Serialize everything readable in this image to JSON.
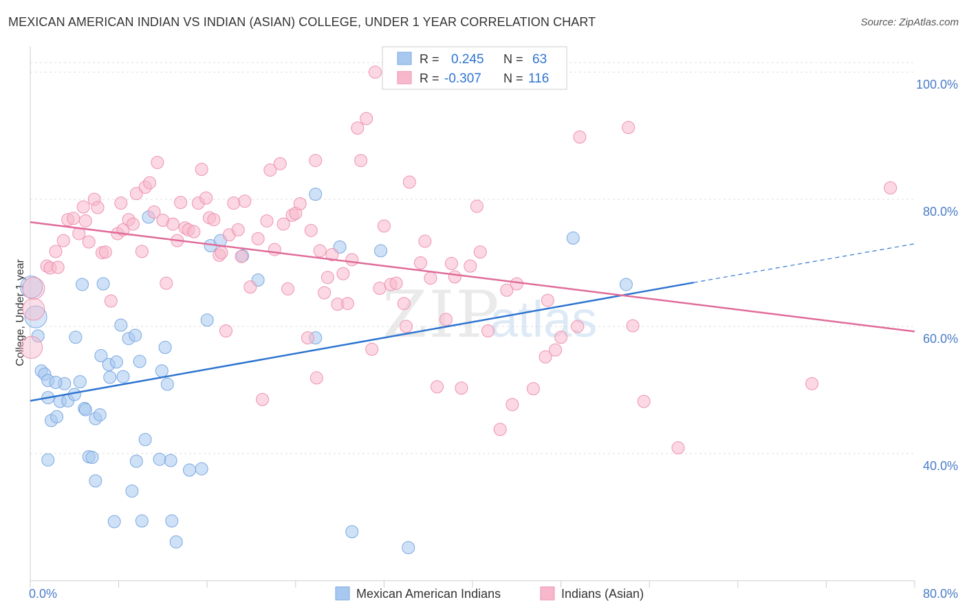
{
  "header": {
    "title": "MEXICAN AMERICAN INDIAN VS INDIAN (ASIAN) COLLEGE, UNDER 1 YEAR CORRELATION CHART",
    "source": "Source: ZipAtlas.com"
  },
  "watermark": {
    "zip": "ZIP",
    "atlas": "atlas"
  },
  "legend_box": {
    "rows": [
      {
        "r_label": "R =",
        "r_value": "0.245",
        "n_label": "N =",
        "n_value": "63"
      },
      {
        "r_label": "R =",
        "r_value": "-0.307",
        "n_label": "N =",
        "n_value": "116"
      }
    ]
  },
  "colors": {
    "blue_fill": "#a8c8f0",
    "blue_stroke": "#7aa8e0",
    "blue_line": "#2d74d0",
    "pink_fill": "#f7b8cc",
    "pink_stroke": "#ee93b0",
    "pink_line": "#e06b98",
    "axis_text": "#4a7cc7",
    "grid": "#dddddd"
  },
  "chart_data": {
    "type": "scatter",
    "title": "MEXICAN AMERICAN INDIAN VS INDIAN (ASIAN) COLLEGE, UNDER 1 YEAR CORRELATION CHART",
    "xlabel": "",
    "ylabel": "College, Under 1 year",
    "xlim": [
      0,
      80
    ],
    "ylim": [
      20,
      104
    ],
    "x_tick_labels": [
      {
        "value": 0,
        "label": "0.0%"
      },
      {
        "value": 80,
        "label": "80.0%"
      }
    ],
    "y_tick_labels": [
      {
        "value": 40,
        "label": "40.0%"
      },
      {
        "value": 60,
        "label": "60.0%"
      },
      {
        "value": 80,
        "label": "80.0%"
      },
      {
        "value": 100,
        "label": "100.0%"
      }
    ],
    "grid": true,
    "legend_position": "bottom-center",
    "series": [
      {
        "name": "Mexican American Indians",
        "r": 0.245,
        "n": 63,
        "trend": {
          "x0": 0,
          "y0": 48.3,
          "x1": 60,
          "y1": 66.9,
          "dash_x1": 80,
          "dash_y1": 73.0
        },
        "points": [
          [
            0.1,
            66.2
          ],
          [
            0.5,
            61.5
          ],
          [
            0.7,
            58.5
          ],
          [
            1.0,
            53.0
          ],
          [
            1.3,
            52.5
          ],
          [
            1.6,
            48.8
          ],
          [
            1.9,
            45.2
          ],
          [
            2.4,
            45.8
          ],
          [
            2.7,
            48.2
          ],
          [
            3.1,
            51.0
          ],
          [
            1.6,
            51.5
          ],
          [
            3.4,
            48.3
          ],
          [
            2.3,
            51.2
          ],
          [
            4.1,
            58.3
          ],
          [
            4.0,
            49.3
          ],
          [
            4.5,
            51.3
          ],
          [
            4.9,
            47.1
          ],
          [
            5.0,
            46.9
          ],
          [
            5.9,
            45.5
          ],
          [
            6.3,
            46.1
          ],
          [
            6.4,
            55.4
          ],
          [
            6.6,
            66.7
          ],
          [
            7.1,
            54.0
          ],
          [
            7.2,
            52.0
          ],
          [
            7.8,
            54.4
          ],
          [
            8.2,
            60.2
          ],
          [
            8.4,
            52.1
          ],
          [
            8.9,
            58.1
          ],
          [
            9.5,
            58.6
          ],
          [
            9.9,
            54.5
          ],
          [
            10.4,
            42.2
          ],
          [
            10.7,
            77.2
          ],
          [
            11.7,
            39.1
          ],
          [
            11.9,
            53.0
          ],
          [
            12.2,
            56.7
          ],
          [
            12.4,
            50.9
          ],
          [
            12.7,
            38.9
          ],
          [
            14.4,
            37.4
          ],
          [
            15.5,
            37.6
          ],
          [
            16.0,
            61.0
          ],
          [
            16.3,
            72.7
          ],
          [
            17.2,
            73.5
          ],
          [
            19.2,
            71.1
          ],
          [
            20.6,
            67.3
          ],
          [
            1.6,
            39.0
          ],
          [
            5.3,
            39.5
          ],
          [
            5.6,
            39.4
          ],
          [
            5.9,
            35.7
          ],
          [
            7.6,
            29.3
          ],
          [
            9.2,
            34.1
          ],
          [
            9.6,
            38.8
          ],
          [
            10.1,
            29.4
          ],
          [
            12.8,
            29.4
          ],
          [
            13.2,
            26.1
          ],
          [
            25.8,
            80.8
          ],
          [
            25.8,
            58.2
          ],
          [
            28.0,
            72.5
          ],
          [
            29.1,
            27.7
          ],
          [
            31.7,
            71.9
          ],
          [
            34.2,
            25.2
          ],
          [
            49.1,
            73.9
          ],
          [
            53.9,
            66.6
          ],
          [
            4.7,
            66.6
          ]
        ]
      },
      {
        "name": "Indians (Asian)",
        "r": -0.307,
        "n": 116,
        "trend": {
          "x0": 0,
          "y0": 76.4,
          "x1": 80,
          "y1": 59.2
        },
        "points": [
          [
            0.1,
            56.7
          ],
          [
            0.3,
            62.7
          ],
          [
            0.3,
            66.0
          ],
          [
            1.5,
            69.5
          ],
          [
            1.8,
            69.2
          ],
          [
            2.3,
            71.8
          ],
          [
            2.5,
            69.3
          ],
          [
            3.0,
            73.5
          ],
          [
            3.4,
            76.8
          ],
          [
            3.9,
            77.0
          ],
          [
            4.4,
            74.6
          ],
          [
            4.8,
            78.8
          ],
          [
            5.0,
            76.6
          ],
          [
            5.3,
            73.3
          ],
          [
            5.8,
            80.0
          ],
          [
            6.1,
            78.7
          ],
          [
            6.5,
            71.6
          ],
          [
            6.8,
            71.7
          ],
          [
            7.3,
            64.0
          ],
          [
            7.9,
            74.6
          ],
          [
            8.2,
            79.4
          ],
          [
            8.4,
            75.2
          ],
          [
            8.9,
            76.8
          ],
          [
            9.3,
            76.1
          ],
          [
            9.6,
            80.9
          ],
          [
            10.1,
            71.8
          ],
          [
            10.4,
            81.9
          ],
          [
            10.8,
            82.6
          ],
          [
            11.2,
            78.0
          ],
          [
            11.5,
            85.8
          ],
          [
            12.0,
            76.7
          ],
          [
            12.3,
            66.8
          ],
          [
            12.9,
            76.1
          ],
          [
            13.3,
            73.5
          ],
          [
            13.6,
            79.5
          ],
          [
            14.0,
            75.5
          ],
          [
            14.3,
            75.2
          ],
          [
            14.8,
            74.9
          ],
          [
            15.2,
            79.4
          ],
          [
            15.5,
            84.7
          ],
          [
            15.9,
            80.2
          ],
          [
            16.2,
            77.1
          ],
          [
            16.6,
            76.8
          ],
          [
            17.1,
            71.2
          ],
          [
            17.3,
            71.6
          ],
          [
            17.7,
            59.3
          ],
          [
            18.0,
            74.4
          ],
          [
            18.4,
            79.4
          ],
          [
            18.8,
            75.2
          ],
          [
            19.1,
            71.0
          ],
          [
            19.4,
            79.7
          ],
          [
            19.9,
            66.2
          ],
          [
            20.6,
            73.8
          ],
          [
            21.0,
            48.5
          ],
          [
            21.4,
            76.6
          ],
          [
            21.7,
            84.6
          ],
          [
            22.1,
            72.1
          ],
          [
            22.6,
            85.6
          ],
          [
            22.9,
            76.1
          ],
          [
            23.3,
            65.9
          ],
          [
            23.7,
            77.5
          ],
          [
            24.0,
            77.8
          ],
          [
            24.4,
            79.3
          ],
          [
            25.1,
            58.2
          ],
          [
            25.4,
            75.1
          ],
          [
            25.8,
            86.1
          ],
          [
            25.9,
            51.9
          ],
          [
            26.2,
            71.9
          ],
          [
            26.6,
            65.3
          ],
          [
            26.9,
            67.7
          ],
          [
            27.3,
            71.3
          ],
          [
            27.8,
            63.5
          ],
          [
            28.3,
            68.3
          ],
          [
            28.7,
            63.6
          ],
          [
            29.1,
            70.5
          ],
          [
            29.6,
            91.2
          ],
          [
            29.9,
            86.1
          ],
          [
            30.4,
            92.7
          ],
          [
            30.9,
            56.4
          ],
          [
            31.2,
            100.0
          ],
          [
            31.6,
            66.0
          ],
          [
            32.0,
            75.8
          ],
          [
            32.6,
            66.6
          ],
          [
            33.1,
            66.8
          ],
          [
            33.8,
            63.6
          ],
          [
            34.0,
            60.0
          ],
          [
            34.3,
            82.7
          ],
          [
            35.3,
            70.0
          ],
          [
            35.7,
            73.4
          ],
          [
            36.2,
            67.6
          ],
          [
            36.8,
            50.5
          ],
          [
            37.6,
            61.1
          ],
          [
            38.1,
            69.9
          ],
          [
            38.4,
            67.8
          ],
          [
            39.0,
            50.3
          ],
          [
            39.8,
            69.5
          ],
          [
            40.4,
            78.9
          ],
          [
            40.7,
            71.7
          ],
          [
            41.4,
            59.3
          ],
          [
            42.5,
            43.8
          ],
          [
            43.1,
            65.7
          ],
          [
            43.6,
            47.7
          ],
          [
            44.0,
            66.7
          ],
          [
            45.5,
            50.2
          ],
          [
            46.6,
            55.2
          ],
          [
            46.8,
            64.1
          ],
          [
            47.5,
            56.3
          ],
          [
            48.0,
            58.3
          ],
          [
            49.5,
            60.0
          ],
          [
            49.7,
            89.8
          ],
          [
            54.1,
            91.3
          ],
          [
            54.5,
            60.1
          ],
          [
            55.5,
            48.2
          ],
          [
            58.6,
            40.9
          ],
          [
            70.7,
            51.0
          ],
          [
            77.8,
            81.8
          ]
        ]
      }
    ]
  },
  "bottom_legend": {
    "items": [
      {
        "label": "Mexican American Indians"
      },
      {
        "label": "Indians (Asian)"
      }
    ]
  }
}
